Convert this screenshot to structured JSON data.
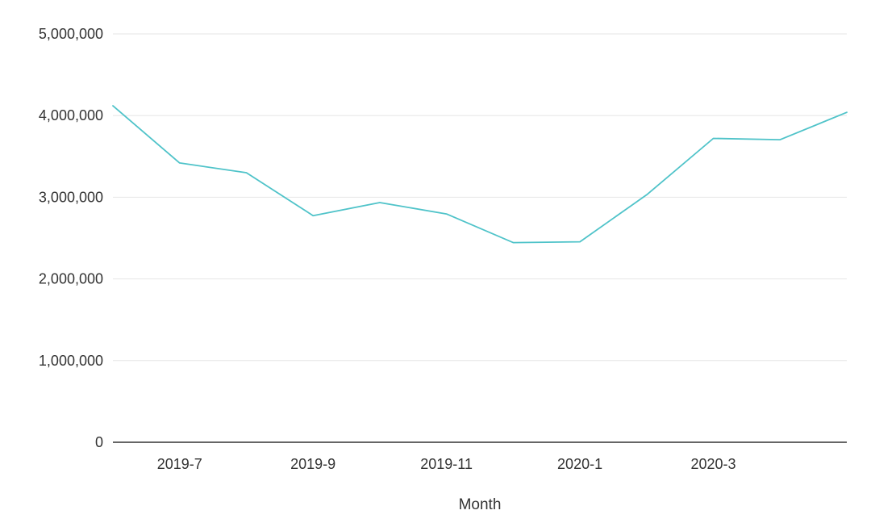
{
  "chart_data": {
    "type": "line",
    "title": "",
    "xlabel": "Month",
    "ylabel": "",
    "x": [
      "2019-6",
      "2019-7",
      "2019-8",
      "2019-9",
      "2019-10",
      "2019-11",
      "2019-12",
      "2020-1",
      "2020-2",
      "2020-3",
      "2020-4",
      "2020-5"
    ],
    "x_tick_labels": [
      "2019-7",
      "2019-9",
      "2019-11",
      "2020-1",
      "2020-3"
    ],
    "series": [
      {
        "values": [
          4120000,
          3420000,
          3300000,
          2775000,
          2935000,
          2795000,
          2445000,
          2455000,
          3030000,
          3720000,
          3705000,
          4040000
        ],
        "color": "#4fc3c9"
      }
    ],
    "yticks": [
      0,
      1000000,
      2000000,
      3000000,
      4000000,
      5000000
    ],
    "ytick_labels": [
      "0",
      "1,000,000",
      "2,000,000",
      "3,000,000",
      "4,000,000",
      "5,000,000"
    ],
    "ylim": [
      0,
      5000000
    ],
    "grid": true,
    "legend": "none"
  }
}
